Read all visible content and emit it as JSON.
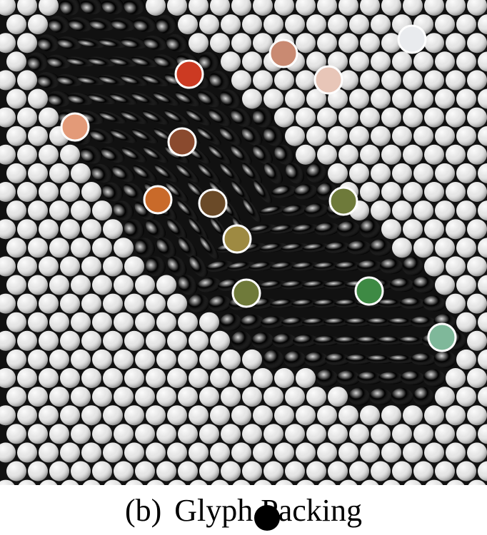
{
  "caption": {
    "label": "(b)",
    "title": "Glyph Packing"
  },
  "colors": {
    "background": "#111111",
    "neutral_glyph": "#e6e6e6",
    "red": "#cc3d1c",
    "orange": "#d6812f",
    "olive": "#9a9a3c",
    "green": "#3f9a3f",
    "highlight_ring": "#ffffff"
  },
  "icons": {
    "cursor": "cursor-dot-icon"
  }
}
